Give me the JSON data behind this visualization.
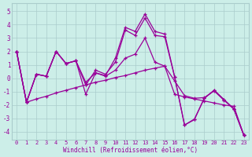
{
  "xlabel": "Windchill (Refroidissement éolien,°C)",
  "bg_color": "#cceee8",
  "grid_color": "#aacccc",
  "line_color": "#990099",
  "xlim": [
    -0.5,
    23.5
  ],
  "ylim": [
    -4.6,
    5.6
  ],
  "yticks": [
    -4,
    -3,
    -2,
    -1,
    0,
    1,
    2,
    3,
    4,
    5
  ],
  "xticks": [
    0,
    1,
    2,
    3,
    4,
    5,
    6,
    7,
    8,
    9,
    10,
    11,
    12,
    13,
    14,
    15,
    16,
    17,
    18,
    19,
    20,
    21,
    22,
    23
  ],
  "series": [
    {
      "x": [
        0,
        1,
        2,
        3,
        4,
        5,
        6,
        7,
        8,
        9,
        10,
        11,
        12,
        13,
        14,
        15,
        16,
        17,
        18,
        19,
        20,
        21,
        22,
        23
      ],
      "y": [
        2.0,
        -1.8,
        -1.55,
        -1.35,
        -1.1,
        -0.9,
        -0.7,
        -0.5,
        -0.3,
        -0.15,
        0.05,
        0.2,
        0.4,
        0.6,
        0.75,
        0.9,
        -1.2,
        -1.4,
        -1.55,
        -1.7,
        -1.85,
        -2.0,
        -2.1,
        -4.25
      ]
    },
    {
      "x": [
        0,
        1,
        2,
        3,
        4,
        5,
        6,
        7,
        8,
        9,
        10,
        11,
        12,
        13,
        14,
        15,
        16,
        17,
        18,
        19,
        20,
        21,
        22,
        23
      ],
      "y": [
        2.0,
        -1.8,
        0.3,
        0.15,
        2.0,
        1.1,
        1.3,
        -1.2,
        0.4,
        0.2,
        1.5,
        3.8,
        3.5,
        4.8,
        3.5,
        3.3,
        0.1,
        -3.5,
        -3.1,
        -1.5,
        -0.9,
        -1.6,
        -2.3,
        -4.25
      ]
    },
    {
      "x": [
        0,
        1,
        2,
        3,
        4,
        5,
        6,
        7,
        8,
        9,
        10,
        11,
        12,
        13,
        14,
        15,
        16,
        17,
        18,
        19,
        20,
        21,
        22,
        23
      ],
      "y": [
        2.0,
        -1.8,
        0.3,
        0.15,
        2.0,
        1.1,
        1.3,
        -0.5,
        0.6,
        0.3,
        1.2,
        3.6,
        3.2,
        4.5,
        3.2,
        3.1,
        0.1,
        -3.5,
        -3.05,
        -1.5,
        -0.9,
        -1.6,
        -2.3,
        -4.25
      ]
    },
    {
      "x": [
        0,
        1,
        2,
        3,
        4,
        5,
        6,
        7,
        8,
        9,
        10,
        11,
        12,
        13,
        14,
        15,
        16,
        17,
        18,
        19,
        20,
        21,
        22,
        23
      ],
      "y": [
        2.0,
        -1.8,
        0.3,
        0.15,
        2.0,
        1.1,
        1.3,
        -0.3,
        0.4,
        0.15,
        0.6,
        1.5,
        1.8,
        3.0,
        1.2,
        0.9,
        -0.2,
        -1.3,
        -1.5,
        -1.45,
        -0.95,
        -1.65,
        -2.3,
        -4.25
      ]
    }
  ]
}
